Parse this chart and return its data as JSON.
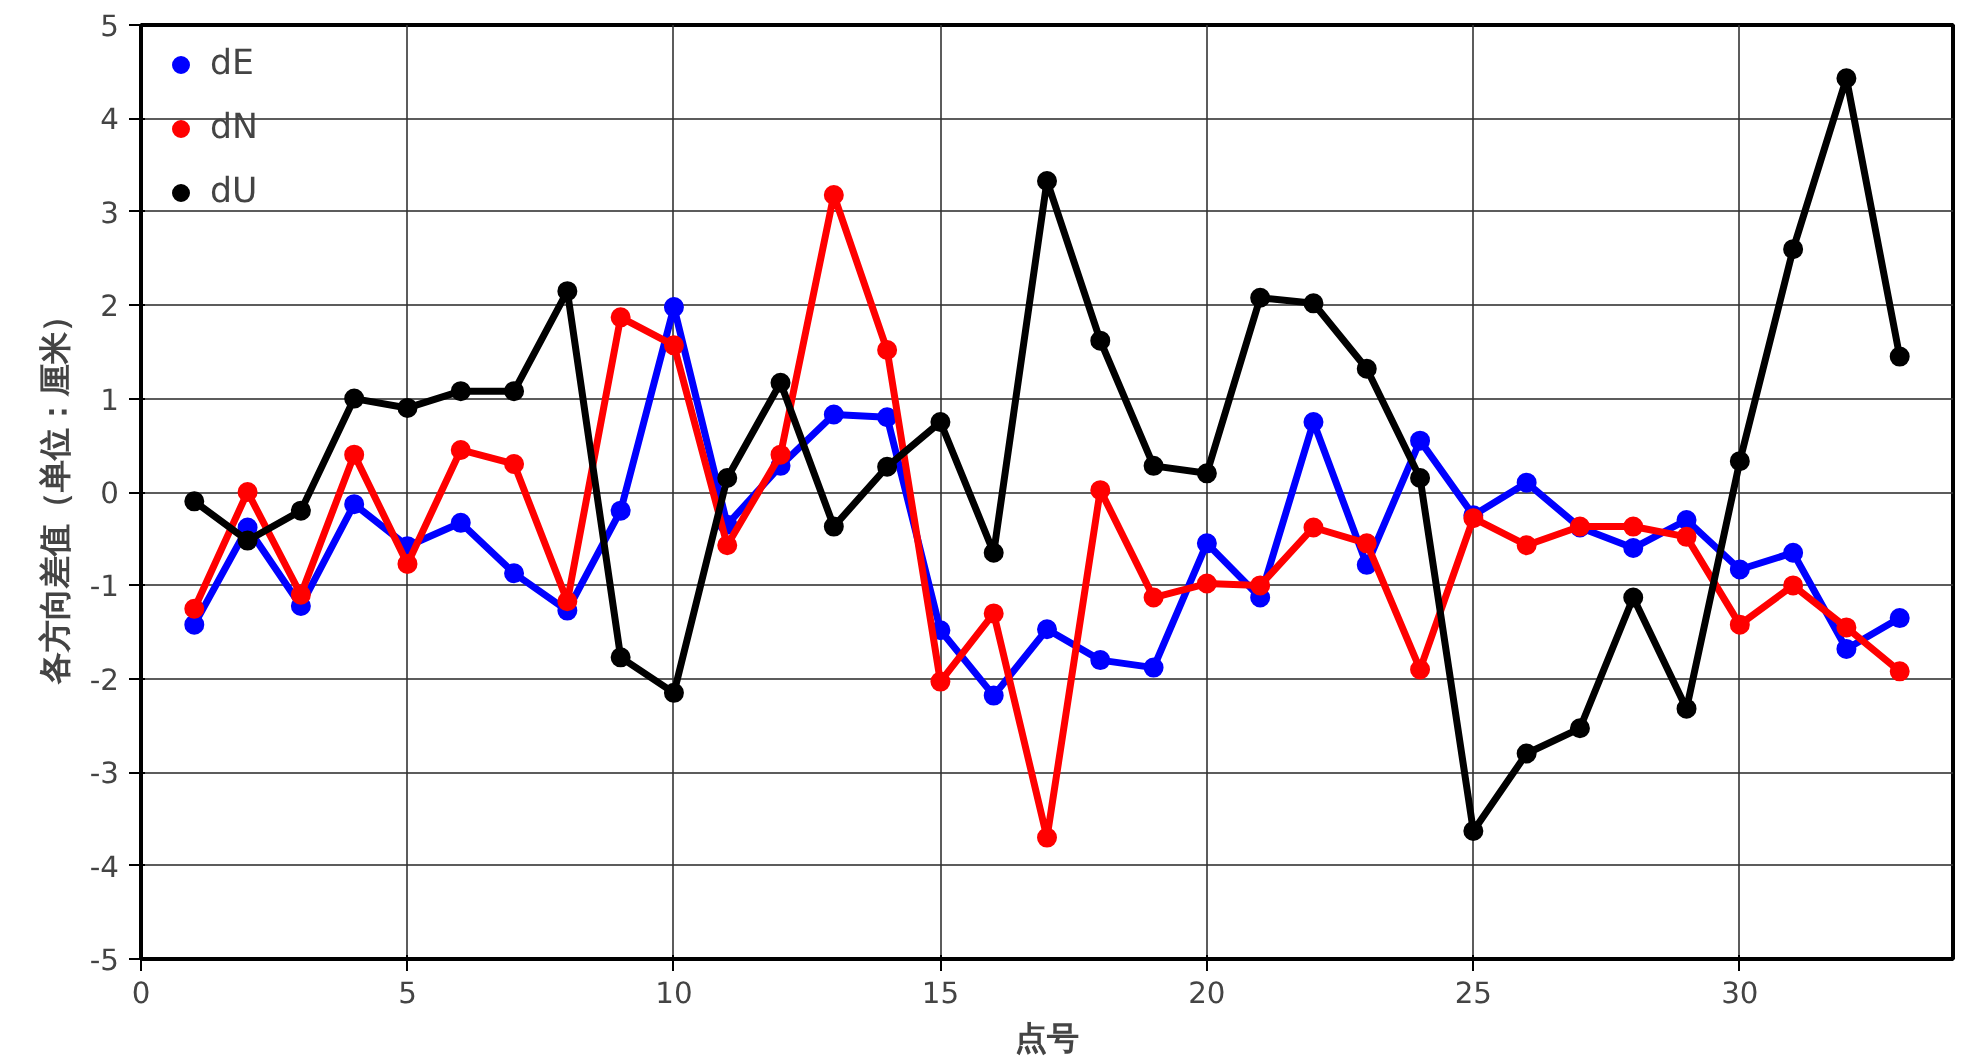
{
  "chart_data": {
    "type": "line",
    "xlabel": "点号",
    "ylabel": "各方向差值（单位：厘米）",
    "x": [
      1,
      2,
      3,
      4,
      5,
      6,
      7,
      8,
      9,
      10,
      11,
      12,
      13,
      14,
      15,
      16,
      17,
      18,
      19,
      20,
      21,
      22,
      23,
      24,
      25,
      26,
      27,
      28,
      29,
      30,
      31,
      32,
      33
    ],
    "series": [
      {
        "name": "dE",
        "color": "#0000ff",
        "values": [
          -1.42,
          -0.38,
          -1.22,
          -0.13,
          -0.58,
          -0.33,
          -0.87,
          -1.27,
          -0.2,
          1.98,
          -0.35,
          0.28,
          0.83,
          0.8,
          -1.48,
          -2.18,
          -1.47,
          -1.8,
          -1.88,
          -0.55,
          -1.13,
          0.75,
          -0.78,
          0.55,
          -0.25,
          0.1,
          -0.38,
          -0.6,
          -0.3,
          -0.83,
          -0.65,
          -1.68,
          -1.35
        ]
      },
      {
        "name": "dN",
        "color": "#ff0000",
        "values": [
          -1.25,
          0,
          -1.1,
          0.4,
          -0.77,
          0.45,
          0.3,
          -1.17,
          1.87,
          1.57,
          -0.57,
          0.4,
          3.18,
          1.52,
          -2.03,
          -1.3,
          -3.7,
          0.02,
          -1.13,
          -0.98,
          -1.0,
          -0.38,
          -0.55,
          -1.9,
          -0.28,
          -0.57,
          -0.37,
          -0.37,
          -0.48,
          -1.42,
          -1.0,
          -1.45,
          -1.92
        ]
      },
      {
        "name": "dU",
        "color": "#000000",
        "values": [
          -0.1,
          -0.52,
          -0.2,
          1.0,
          0.9,
          1.08,
          1.08,
          2.15,
          -1.77,
          -2.15,
          0.15,
          1.17,
          -0.37,
          0.27,
          0.75,
          -0.65,
          3.33,
          1.62,
          0.28,
          0.2,
          2.08,
          2.02,
          1.32,
          0.15,
          -3.63,
          -2.8,
          -2.53,
          -1.13,
          -2.32,
          0.33,
          2.6,
          4.43,
          1.45
        ]
      }
    ],
    "xlim": [
      0,
      34
    ],
    "xticks": [
      0,
      5,
      10,
      15,
      20,
      25,
      30
    ],
    "ylim": [
      -5,
      5
    ],
    "yticks": [
      -5,
      -4,
      -3,
      -2,
      -1,
      0,
      1,
      2,
      3,
      4,
      5
    ],
    "grid": true,
    "legend": "top left",
    "marker": "circle",
    "line_style": "solid"
  }
}
